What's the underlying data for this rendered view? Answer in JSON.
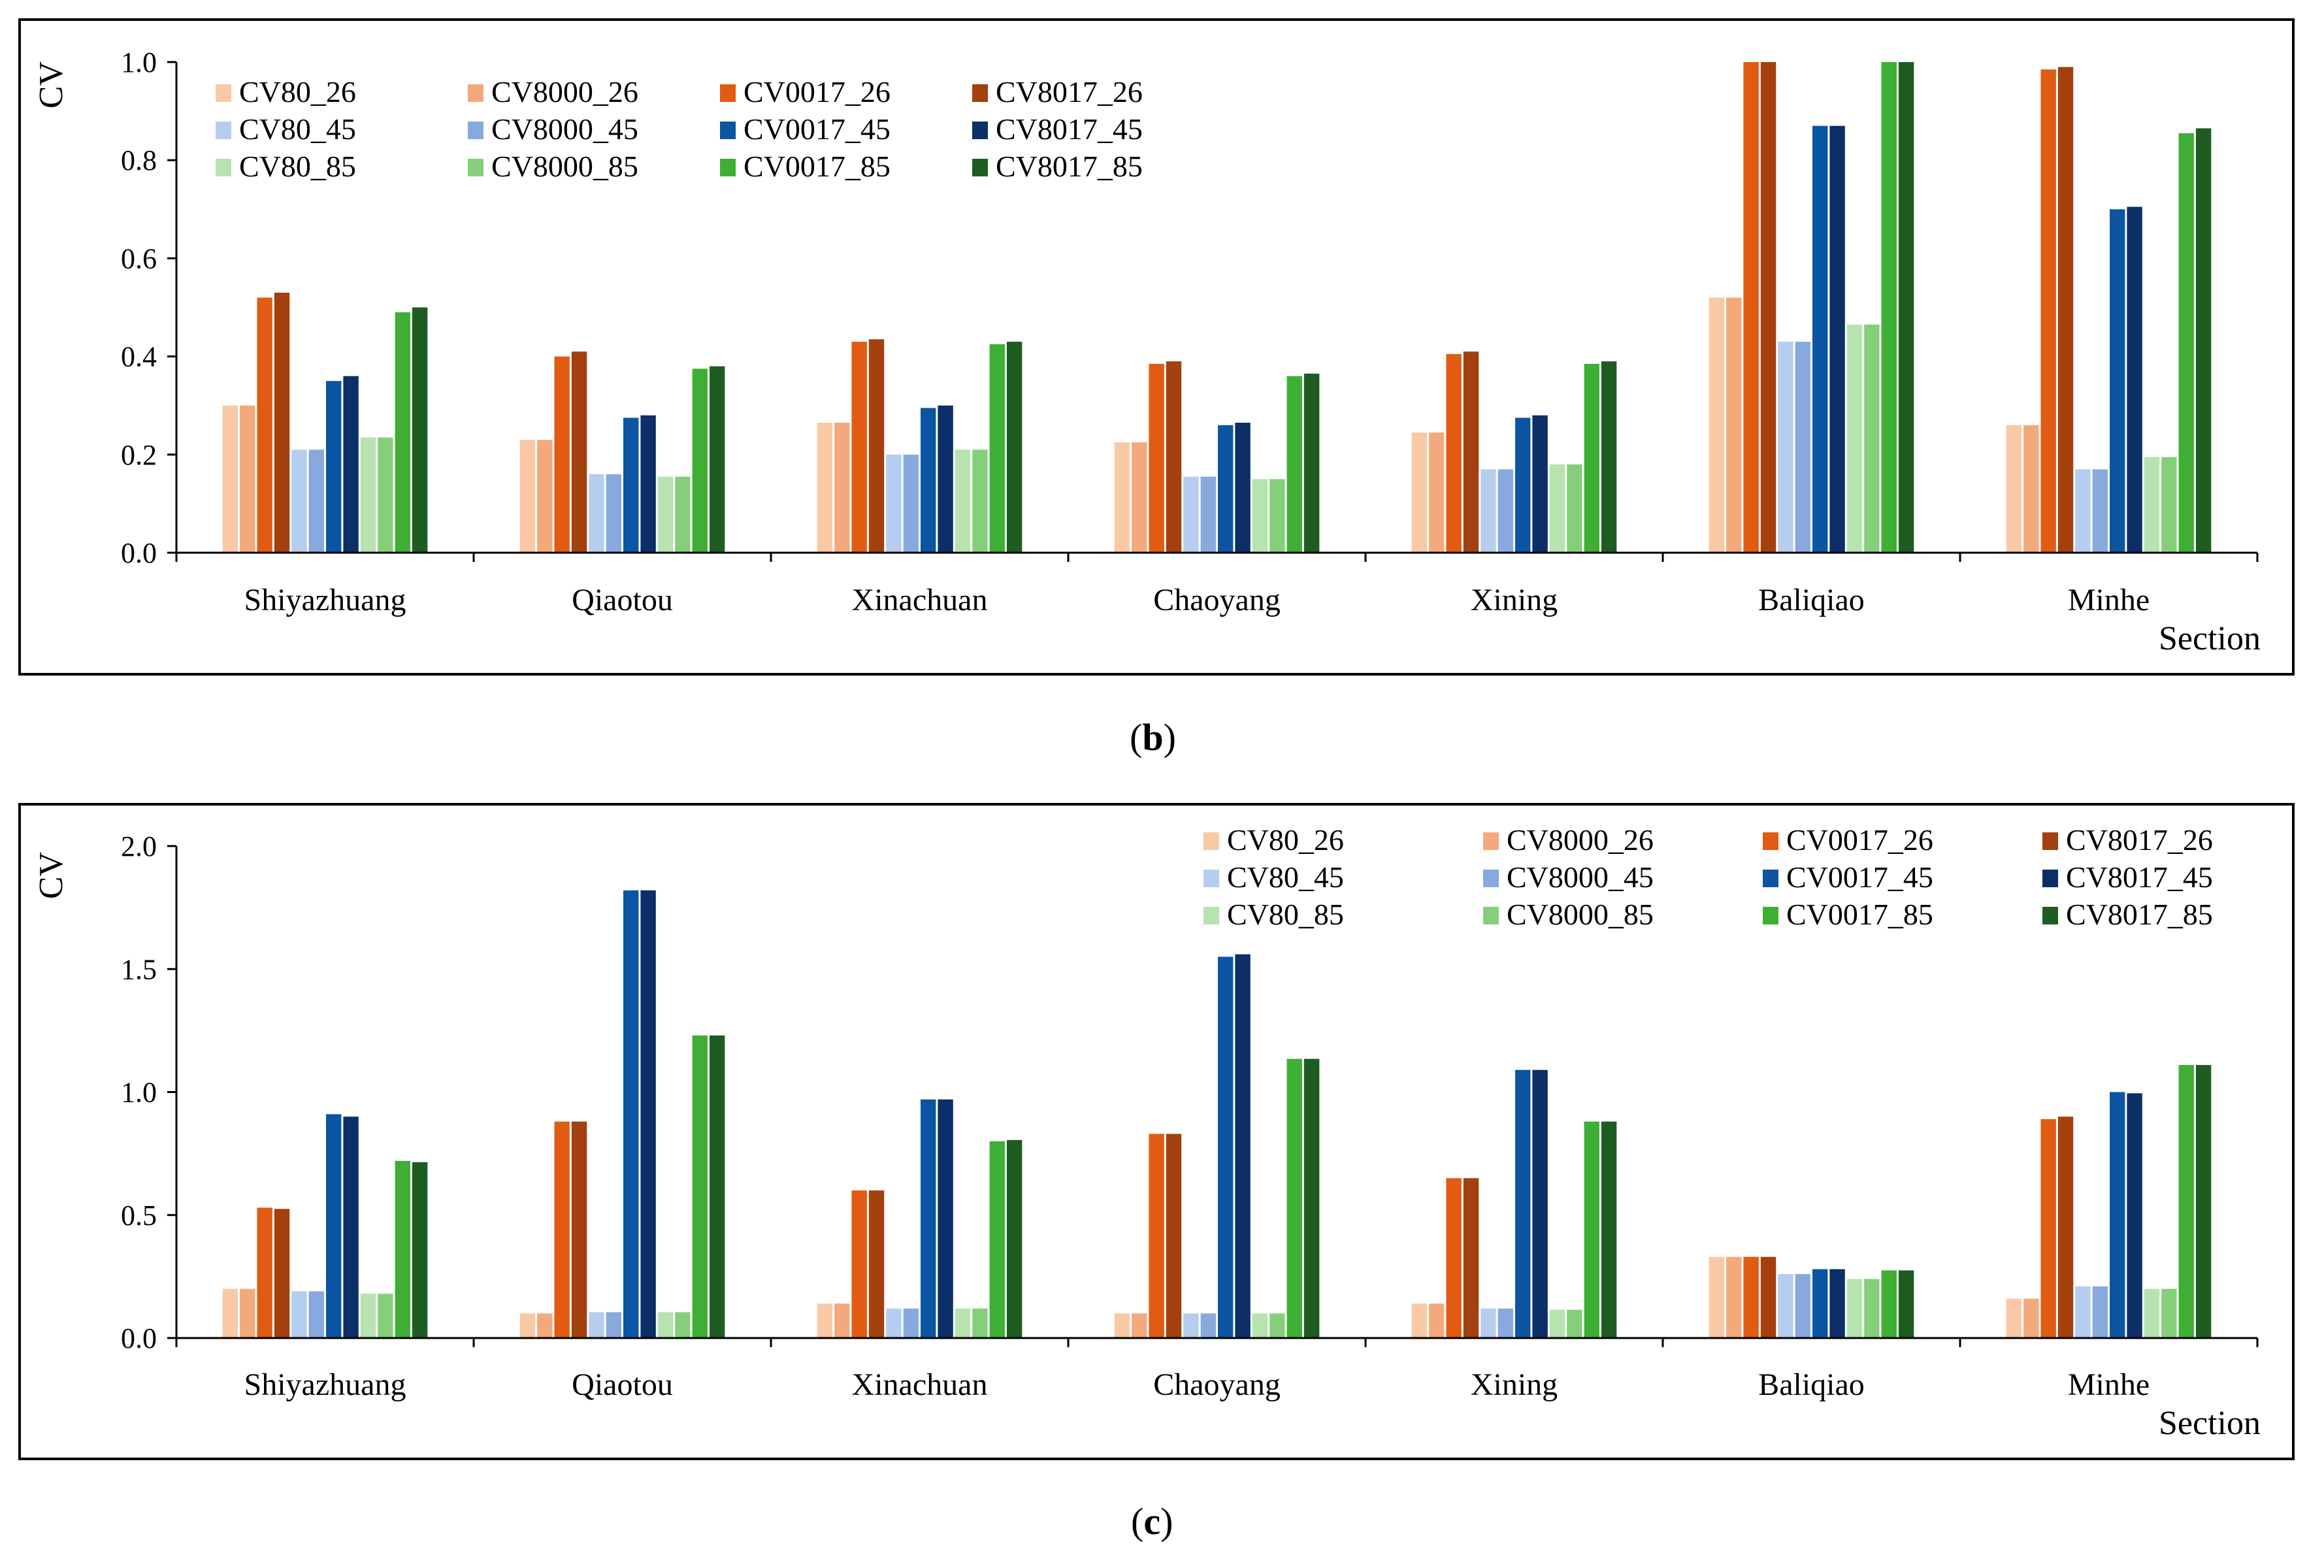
{
  "chart_data": [
    {
      "type": "bar",
      "panel": "b",
      "ylabel": "CV",
      "xlabel": "Section",
      "ylim": [
        0,
        1.0
      ],
      "yticks": [
        "0.0",
        "0.2",
        "0.4",
        "0.6",
        "0.8",
        "1.0"
      ],
      "legend_position": "top-left",
      "categories": [
        "Shiyazhuang",
        "Qiaotou",
        "Xinachuan",
        "Chaoyang",
        "Xining",
        "Baliqiao",
        "Minhe"
      ],
      "series": [
        {
          "name": "CV80_26",
          "color": "#f9c9a6",
          "values": [
            0.3,
            0.23,
            0.265,
            0.225,
            0.245,
            0.52,
            0.26
          ]
        },
        {
          "name": "CV8000_26",
          "color": "#f4a97c",
          "values": [
            0.3,
            0.23,
            0.265,
            0.225,
            0.245,
            0.52,
            0.26
          ]
        },
        {
          "name": "CV0017_26",
          "color": "#e15b12",
          "values": [
            0.52,
            0.4,
            0.43,
            0.385,
            0.405,
            1.0,
            0.985
          ]
        },
        {
          "name": "CV8017_26",
          "color": "#a3400d",
          "values": [
            0.53,
            0.41,
            0.435,
            0.39,
            0.41,
            1.0,
            0.99
          ]
        },
        {
          "name": "CV80_45",
          "color": "#b5cdee",
          "values": [
            0.21,
            0.16,
            0.2,
            0.155,
            0.17,
            0.43,
            0.17
          ]
        },
        {
          "name": "CV8000_45",
          "color": "#87a9de",
          "values": [
            0.21,
            0.16,
            0.2,
            0.155,
            0.17,
            0.43,
            0.17
          ]
        },
        {
          "name": "CV0017_45",
          "color": "#0b55a3",
          "values": [
            0.35,
            0.275,
            0.295,
            0.26,
            0.275,
            0.87,
            0.7
          ]
        },
        {
          "name": "CV8017_45",
          "color": "#0b2f66",
          "values": [
            0.36,
            0.28,
            0.3,
            0.265,
            0.28,
            0.87,
            0.705
          ]
        },
        {
          "name": "CV80_85",
          "color": "#b7e3b0",
          "values": [
            0.235,
            0.155,
            0.21,
            0.15,
            0.18,
            0.465,
            0.195
          ]
        },
        {
          "name": "CV8000_85",
          "color": "#86cf7a",
          "values": [
            0.235,
            0.155,
            0.21,
            0.15,
            0.18,
            0.465,
            0.195
          ]
        },
        {
          "name": "CV0017_85",
          "color": "#3fae35",
          "values": [
            0.49,
            0.375,
            0.425,
            0.36,
            0.385,
            1.0,
            0.855
          ]
        },
        {
          "name": "CV8017_85",
          "color": "#1e5c22",
          "values": [
            0.5,
            0.38,
            0.43,
            0.365,
            0.39,
            1.0,
            0.865
          ]
        }
      ]
    },
    {
      "type": "bar",
      "panel": "c",
      "ylabel": "CV",
      "xlabel": "Section",
      "ylim": [
        0,
        2.0
      ],
      "yticks": [
        "0.0",
        "0.5",
        "1.0",
        "1.5",
        "2.0"
      ],
      "legend_position": "top-right",
      "categories": [
        "Shiyazhuang",
        "Qiaotou",
        "Xinachuan",
        "Chaoyang",
        "Xining",
        "Baliqiao",
        "Minhe"
      ],
      "series": [
        {
          "name": "CV80_26",
          "color": "#f9c9a6",
          "values": [
            0.2,
            0.1,
            0.14,
            0.1,
            0.14,
            0.33,
            0.16
          ]
        },
        {
          "name": "CV8000_26",
          "color": "#f4a97c",
          "values": [
            0.2,
            0.1,
            0.14,
            0.1,
            0.14,
            0.33,
            0.16
          ]
        },
        {
          "name": "CV0017_26",
          "color": "#e15b12",
          "values": [
            0.53,
            0.88,
            0.6,
            0.83,
            0.65,
            0.33,
            0.89
          ]
        },
        {
          "name": "CV8017_26",
          "color": "#a3400d",
          "values": [
            0.525,
            0.88,
            0.6,
            0.83,
            0.65,
            0.33,
            0.9
          ]
        },
        {
          "name": "CV80_45",
          "color": "#b5cdee",
          "values": [
            0.19,
            0.105,
            0.12,
            0.1,
            0.12,
            0.26,
            0.21
          ]
        },
        {
          "name": "CV8000_45",
          "color": "#87a9de",
          "values": [
            0.19,
            0.105,
            0.12,
            0.1,
            0.12,
            0.26,
            0.21
          ]
        },
        {
          "name": "CV0017_45",
          "color": "#0b55a3",
          "values": [
            0.91,
            1.82,
            0.97,
            1.55,
            1.09,
            0.28,
            1.0
          ]
        },
        {
          "name": "CV8017_45",
          "color": "#0b2f66",
          "values": [
            0.9,
            1.82,
            0.97,
            1.56,
            1.09,
            0.28,
            0.995
          ]
        },
        {
          "name": "CV80_85",
          "color": "#b7e3b0",
          "values": [
            0.18,
            0.105,
            0.12,
            0.1,
            0.115,
            0.24,
            0.2
          ]
        },
        {
          "name": "CV8000_85",
          "color": "#86cf7a",
          "values": [
            0.18,
            0.105,
            0.12,
            0.1,
            0.115,
            0.24,
            0.2
          ]
        },
        {
          "name": "CV0017_85",
          "color": "#3fae35",
          "values": [
            0.72,
            1.23,
            0.8,
            1.135,
            0.88,
            0.275,
            1.11
          ]
        },
        {
          "name": "CV8017_85",
          "color": "#1e5c22",
          "values": [
            0.715,
            1.23,
            0.805,
            1.135,
            0.88,
            0.275,
            1.11
          ]
        }
      ]
    }
  ],
  "captions": {
    "b": "b",
    "c": "c"
  }
}
